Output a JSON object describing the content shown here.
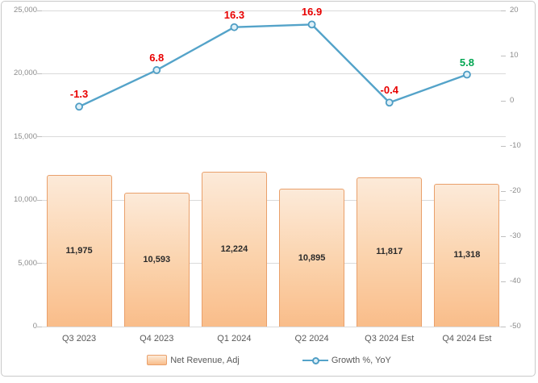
{
  "chart_data": {
    "type": "combo-bar-line",
    "title": "",
    "categories": [
      "Q3 2023",
      "Q4 2023",
      "Q1 2024",
      "Q2 2024",
      "Q3 2024 Est",
      "Q4 2024 Est"
    ],
    "series": [
      {
        "name": "Net Revenue, Adj",
        "chart_type": "bar",
        "axis": "left",
        "values": [
          11975,
          10593,
          12224,
          10895,
          11817,
          11318
        ],
        "value_labels": [
          "11,975",
          "10,593",
          "12,224",
          "10,895",
          "11,817",
          "11,318"
        ]
      },
      {
        "name": "Growth %, YoY",
        "chart_type": "line",
        "axis": "right",
        "values": [
          -1.3,
          6.8,
          16.3,
          16.9,
          -0.4,
          5.8
        ],
        "value_labels": [
          "-1.3",
          "6.8",
          "16.3",
          "16.9",
          "-0.4",
          "5.8"
        ],
        "label_colors": [
          "#e80000",
          "#e80000",
          "#e80000",
          "#e80000",
          "#e80000",
          "#00a651"
        ]
      }
    ],
    "left_axis": {
      "min": 0,
      "max": 25000,
      "step": 5000,
      "tick_labels": [
        "0",
        "5,000",
        "10,000",
        "15,000",
        "20,000",
        "25,000"
      ]
    },
    "right_axis": {
      "min": -50,
      "max": 20,
      "step": 10,
      "tick_labels": [
        "-50",
        "-40",
        "-30",
        "-20",
        "-10",
        "0",
        "10",
        "20"
      ]
    },
    "grid": true,
    "legend_position": "bottom",
    "colors": {
      "bar_fill_top": "#fcead9",
      "bar_fill_bottom": "#f9bd8a",
      "bar_border": "#e9a06b",
      "line": "#54a3c9",
      "marker_fill": "#dff0f8",
      "marker_border": "#4e9dc4",
      "negative_label_red": "#e80000",
      "estimate_label_green": "#00a651",
      "gridline": "#dadada",
      "axis_text": "#8c8c8c",
      "category_text": "#595959",
      "bar_value_text": "#2b2b2b"
    }
  }
}
